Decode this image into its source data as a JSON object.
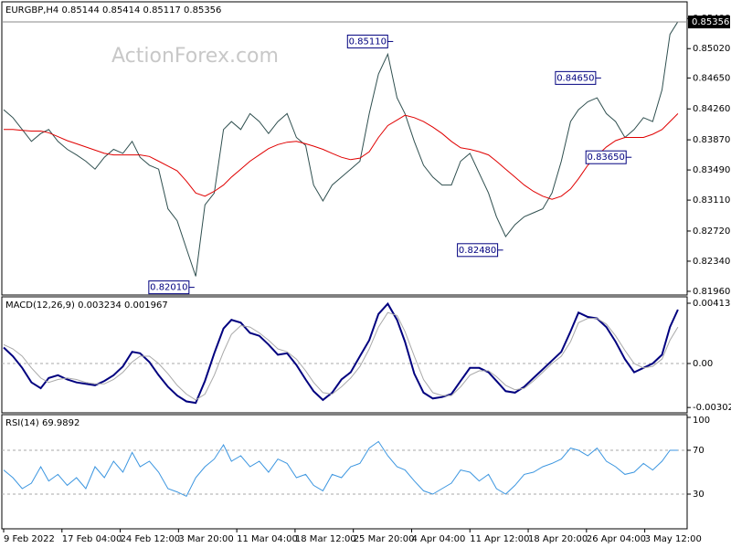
{
  "chart_data": [
    {
      "type": "line",
      "title": "EURGBP,H4  0.85144 0.85414 0.85117 0.85356",
      "watermark": "ActionForex.com",
      "x": [
        0,
        7,
        14,
        21,
        28,
        34,
        41,
        48,
        55,
        62,
        69,
        76,
        83,
        90,
        97,
        103,
        110,
        117,
        124,
        131,
        138,
        145,
        152,
        159,
        166,
        172,
        179,
        186,
        193,
        200,
        207,
        214,
        221,
        228,
        234,
        241,
        248,
        255,
        262,
        269,
        276,
        283,
        290,
        297,
        303,
        310,
        317,
        324,
        331,
        338,
        345,
        352,
        359,
        366,
        372,
        379,
        386,
        393,
        400,
        407,
        414,
        421,
        428,
        434,
        441,
        448,
        455,
        462,
        469,
        476,
        483,
        490,
        497,
        503,
        509
      ],
      "xlim": [
        0,
        516
      ],
      "xticks": [
        {
          "value": 0,
          "label": "9 Feb 2022"
        },
        {
          "value": 44,
          "label": "17 Feb 04:00"
        },
        {
          "value": 88,
          "label": "24 Feb 12:00"
        },
        {
          "value": 132,
          "label": "3 Mar 20:00"
        },
        {
          "value": 176,
          "label": "11 Mar 04:00"
        },
        {
          "value": 220,
          "label": "18 Mar 12:00"
        },
        {
          "value": 264,
          "label": "25 Mar 20:00"
        },
        {
          "value": 308,
          "label": "4 Apr 04:00"
        },
        {
          "value": 352,
          "label": "11 Apr 12:00"
        },
        {
          "value": 396,
          "label": "18 Apr 20:00"
        },
        {
          "value": 440,
          "label": "26 Apr 04:00"
        },
        {
          "value": 484,
          "label": "3 May 12:00"
        }
      ],
      "ylim": [
        0.81925,
        0.85587
      ],
      "yticks": [
        {
          "value": 0.8196,
          "label": "0.81960"
        },
        {
          "value": 0.8234,
          "label": "0.82340"
        },
        {
          "value": 0.8272,
          "label": "0.82720"
        },
        {
          "value": 0.8311,
          "label": "0.83110"
        },
        {
          "value": 0.8349,
          "label": "0.83490"
        },
        {
          "value": 0.8387,
          "label": "0.83870"
        },
        {
          "value": 0.8426,
          "label": "0.84260"
        },
        {
          "value": 0.8465,
          "label": "0.84650"
        },
        {
          "value": 0.8502,
          "label": "0.85020"
        },
        {
          "value": 0.854,
          "label": "0.85400"
        }
      ],
      "series": [
        {
          "color": "#2f4f4f",
          "values": [
            0.8425,
            0.8415,
            0.84,
            0.8385,
            0.8395,
            0.84,
            0.8385,
            0.8375,
            0.8368,
            0.836,
            0.835,
            0.8365,
            0.8375,
            0.837,
            0.8385,
            0.8365,
            0.8355,
            0.835,
            0.83,
            0.8285,
            0.825,
            0.8215,
            0.8305,
            0.832,
            0.84,
            0.841,
            0.84,
            0.842,
            0.841,
            0.8395,
            0.841,
            0.842,
            0.839,
            0.838,
            0.833,
            0.831,
            0.833,
            0.834,
            0.835,
            0.836,
            0.842,
            0.847,
            0.8495,
            0.844,
            0.842,
            0.8385,
            0.8355,
            0.834,
            0.833,
            0.833,
            0.836,
            0.837,
            0.8345,
            0.832,
            0.829,
            0.8265,
            0.828,
            0.829,
            0.8295,
            0.83,
            0.832,
            0.836,
            0.841,
            0.8425,
            0.8435,
            0.844,
            0.842,
            0.841,
            0.839,
            0.84,
            0.8415,
            0.841,
            0.845,
            0.852,
            0.8536
          ]
        },
        {
          "color": "#e00000",
          "values": [
            0.84,
            0.84,
            0.8399,
            0.8398,
            0.8398,
            0.8396,
            0.8391,
            0.8386,
            0.8382,
            0.8378,
            0.8374,
            0.837,
            0.8368,
            0.8368,
            0.8368,
            0.8368,
            0.8366,
            0.836,
            0.8354,
            0.8348,
            0.8335,
            0.832,
            0.8316,
            0.8322,
            0.833,
            0.834,
            0.835,
            0.836,
            0.8368,
            0.8376,
            0.8381,
            0.8384,
            0.8385,
            0.8382,
            0.8379,
            0.8375,
            0.837,
            0.8365,
            0.8362,
            0.8364,
            0.8372,
            0.839,
            0.8405,
            0.8412,
            0.8418,
            0.8415,
            0.841,
            0.8403,
            0.8395,
            0.8385,
            0.8377,
            0.8375,
            0.8372,
            0.8368,
            0.836,
            0.835,
            0.834,
            0.833,
            0.8322,
            0.8316,
            0.8312,
            0.8316,
            0.8325,
            0.8338,
            0.8355,
            0.8367,
            0.8378,
            0.8386,
            0.839,
            0.839,
            0.839,
            0.8394,
            0.84,
            0.841,
            0.842
          ]
        }
      ],
      "annotations": [
        {
          "label": "0.85110",
          "value": 0.8511,
          "x": 292
        },
        {
          "label": "0.84650",
          "value": 0.8465,
          "x": 449
        },
        {
          "label": "0.83650",
          "value": 0.8365,
          "x": 472
        },
        {
          "label": "0.82480",
          "value": 0.8248,
          "x": 375
        },
        {
          "label": "0.82010",
          "value": 0.8201,
          "x": 142
        }
      ],
      "last": {
        "value": 0.85356,
        "label": "0.85356"
      }
    },
    {
      "type": "line",
      "title": "MACD(12,26,9) 0.003234 0.001967",
      "ylim": [
        -0.003386,
        0.004577
      ],
      "yticks": [
        0.004138,
        {
          "value": 0,
          "label": "0.00"
        },
        -0.00302
      ],
      "levels": [
        0
      ],
      "series": [
        {
          "color": "#00007f",
          "values": [
            0.0011,
            0.0005,
            -0.0003,
            -0.0013,
            -0.0017,
            -0.001,
            -0.0008,
            -0.0011,
            -0.0013,
            -0.0014,
            -0.0015,
            -0.0012,
            -0.0008,
            -0.0002,
            0.0008,
            0.0007,
            0.0001,
            -0.0008,
            -0.0016,
            -0.0022,
            -0.0026,
            -0.0027,
            -0.0012,
            0.0007,
            0.0024,
            0.003,
            0.0028,
            0.0021,
            0.0019,
            0.0013,
            0.0006,
            0.0007,
            -0.0001,
            -0.0011,
            -0.0019,
            -0.0025,
            -0.002,
            -0.0011,
            -0.0006,
            0.0005,
            0.0016,
            0.0034,
            0.0041,
            0.003,
            0.0015,
            -0.0007,
            -0.002,
            -0.0024,
            -0.0023,
            -0.0021,
            -0.0012,
            -0.0003,
            -0.0003,
            -0.0006,
            -0.0012,
            -0.0019,
            -0.002,
            -0.0016,
            -0.001,
            -0.0004,
            0.0002,
            0.0008,
            0.0022,
            0.0035,
            0.0032,
            0.0031,
            0.0025,
            0.0015,
            0.0003,
            -0.0006,
            -0.0003,
            0,
            0.0006,
            0.0025,
            0.0037
          ]
        },
        {
          "color": "#a9a9a9",
          "values": [
            0.0013,
            0.001,
            0.0005,
            -0.0003,
            -0.001,
            -0.0013,
            -0.0011,
            -0.001,
            -0.0011,
            -0.0013,
            -0.0014,
            -0.0014,
            -0.0011,
            -0.0006,
            0.0001,
            0.0005,
            0.0005,
            0,
            -0.0007,
            -0.0015,
            -0.0021,
            -0.0025,
            -0.0021,
            -0.0008,
            0.0008,
            0.002,
            0.0026,
            0.0025,
            0.0021,
            0.0016,
            0.001,
            0.0008,
            0.0003,
            -0.0005,
            -0.0013,
            -0.002,
            -0.0021,
            -0.0016,
            -0.001,
            -0.0002,
            0.001,
            0.0025,
            0.0035,
            0.0033,
            0.0022,
            0.0005,
            -0.0011,
            -0.002,
            -0.0022,
            -0.0022,
            -0.0016,
            -0.0008,
            -0.0005,
            -0.0005,
            -0.0009,
            -0.0015,
            -0.0018,
            -0.0017,
            -0.0012,
            -0.0006,
            0,
            0.0005,
            0.0015,
            0.0028,
            0.0031,
            0.0031,
            0.0027,
            0.0019,
            0.0009,
            0,
            -0.0003,
            -0.0002,
            0.0003,
            0.0016,
            0.0025
          ]
        }
      ]
    },
    {
      "type": "line",
      "title": "RSI(14) 69.9892",
      "ylim": [
        0,
        100
      ],
      "yticks": [
        100,
        70,
        30
      ],
      "levels": [
        70,
        30
      ],
      "series": [
        {
          "color": "#3c96e0",
          "values": [
            52,
            45,
            35,
            40,
            55,
            42,
            48,
            38,
            45,
            35,
            55,
            45,
            60,
            50,
            68,
            55,
            60,
            50,
            35,
            32,
            28,
            45,
            55,
            62,
            75,
            60,
            65,
            55,
            60,
            50,
            62,
            58,
            45,
            48,
            38,
            33,
            48,
            45,
            55,
            58,
            72,
            78,
            65,
            55,
            52,
            42,
            33,
            30,
            35,
            40,
            52,
            50,
            42,
            48,
            35,
            30,
            38,
            48,
            50,
            55,
            58,
            62,
            72,
            70,
            65,
            72,
            60,
            55,
            48,
            50,
            58,
            52,
            60,
            70,
            70
          ]
        }
      ]
    }
  ]
}
